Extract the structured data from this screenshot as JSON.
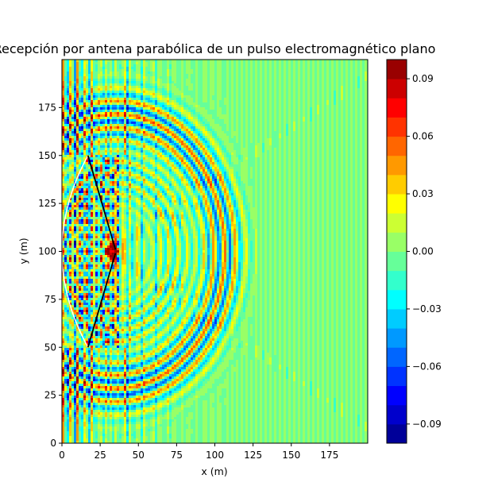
{
  "chart_data": {
    "type": "heatmap",
    "title": "Recepción por antena parabólica de un pulso electromagnético plano",
    "xlabel": "x (m)",
    "ylabel": "y (m)",
    "xlim": [
      0,
      200
    ],
    "ylim": [
      0,
      200
    ],
    "x_ticks": [
      0,
      25,
      50,
      75,
      100,
      125,
      150,
      175
    ],
    "y_ticks": [
      0,
      25,
      50,
      75,
      100,
      125,
      150,
      175
    ],
    "colormap": "jet",
    "colorbar": {
      "range": [
        -0.1,
        0.1
      ],
      "levels": 20,
      "ticks": [
        -0.09,
        -0.06,
        -0.03,
        0.0,
        0.03,
        0.06,
        0.09
      ],
      "tick_labels": [
        "−0.09",
        "−0.06",
        "−0.03",
        "0.00",
        "0.03",
        "0.06",
        "0.09"
      ]
    },
    "field_features": {
      "wavefront_center": [
        35,
        100
      ],
      "wavefront_radius": 72,
      "focus": [
        33,
        100
      ],
      "reflector_vertex_x": 0,
      "reflector_edge_x": 17,
      "reflector_y_range": [
        50,
        150
      ]
    },
    "overlay_lines": {
      "reflector_curve_color": "#ffffff",
      "support_lines": [
        {
          "from": [
            17,
            150
          ],
          "to": [
            35,
            101
          ]
        },
        {
          "from": [
            17,
            50
          ],
          "to": [
            35,
            99
          ]
        }
      ],
      "support_color": "#000000"
    },
    "grid": false
  }
}
